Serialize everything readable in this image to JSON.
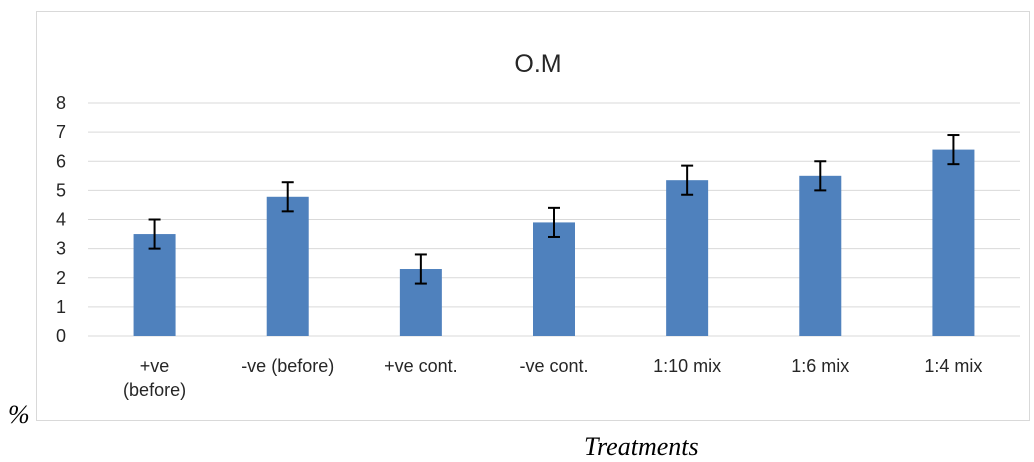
{
  "chart_data": {
    "type": "bar",
    "title": "O.M",
    "xlabel": "Treatments",
    "ylabel": "%",
    "categories": [
      [
        "+ve",
        "(before)"
      ],
      [
        "-ve (before)"
      ],
      [
        "+ve cont."
      ],
      [
        "-ve cont."
      ],
      [
        "1:10 mix"
      ],
      [
        "1:6 mix"
      ],
      [
        "1:4 mix"
      ]
    ],
    "values": [
      3.5,
      4.78,
      2.3,
      3.9,
      5.35,
      5.5,
      6.4
    ],
    "errors": [
      0.5,
      0.5,
      0.5,
      0.5,
      0.5,
      0.5,
      0.5
    ],
    "ylim": [
      0,
      8
    ],
    "yticks": [
      "0",
      "1",
      "2",
      "3",
      "4",
      "5",
      "6",
      "7",
      "8"
    ],
    "grid": true,
    "legend": "none",
    "colors": {
      "bar": "#4f81bd",
      "grid": "#d9d9d9",
      "error": "#000000"
    }
  }
}
